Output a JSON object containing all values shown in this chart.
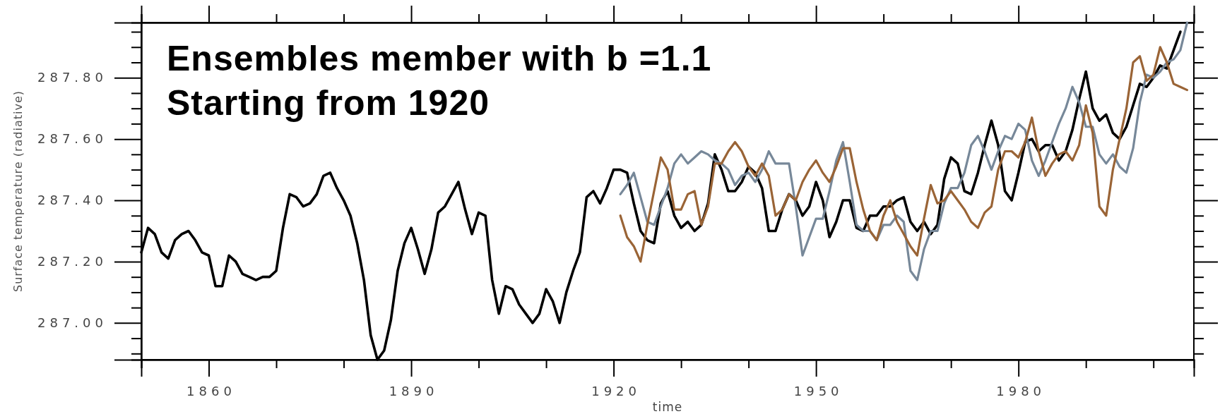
{
  "chart_data": {
    "type": "line",
    "xlabel": "time",
    "ylabel": "Surface temperature (radiative)",
    "annotations": [
      "Ensembles member with b =1.1",
      "Starting from 1920"
    ],
    "xlim": [
      1850,
      2006
    ],
    "ylim": [
      286.88,
      287.98
    ],
    "xticks": [
      {
        "value": 1850,
        "label": null
      },
      1860,
      {
        "value": 1870,
        "label": null
      },
      {
        "value": 1880,
        "label": null
      },
      1890,
      {
        "value": 1900,
        "label": null
      },
      {
        "value": 1910,
        "label": null
      },
      1920,
      {
        "value": 1930,
        "label": null
      },
      {
        "value": 1940,
        "label": null
      },
      1950,
      {
        "value": 1960,
        "label": null
      },
      {
        "value": 1970,
        "label": null
      },
      1980,
      {
        "value": 1990,
        "label": null
      },
      {
        "value": 2000,
        "label": null
      }
    ],
    "yticks": [
      {
        "value": 286.9,
        "label": null
      },
      {
        "value": 286.95,
        "label": null
      },
      {
        "value": 287,
        "label": "287.00"
      },
      {
        "value": 287.05,
        "label": null
      },
      {
        "value": 287.1,
        "label": null
      },
      {
        "value": 287.15,
        "label": null
      },
      {
        "value": 287.2,
        "label": "287.20"
      },
      {
        "value": 287.25,
        "label": null
      },
      {
        "value": 287.3,
        "label": null
      },
      {
        "value": 287.35,
        "label": null
      },
      {
        "value": 287.4,
        "label": "287.40"
      },
      {
        "value": 287.45,
        "label": null
      },
      {
        "value": 287.5,
        "label": null
      },
      {
        "value": 287.55,
        "label": null
      },
      {
        "value": 287.6,
        "label": "287.60"
      },
      {
        "value": 287.65,
        "label": null
      },
      {
        "value": 287.7,
        "label": null
      },
      {
        "value": 287.75,
        "label": null
      },
      {
        "value": 287.8,
        "label": "287.80"
      },
      {
        "value": 287.85,
        "label": null
      },
      {
        "value": 287.9,
        "label": null
      },
      {
        "value": 287.95,
        "label": null
      }
    ],
    "series": [
      {
        "color": "#000000",
        "x": [
          1850,
          1851,
          1852,
          1853,
          1854,
          1855,
          1856,
          1857,
          1858,
          1859,
          1860,
          1861,
          1862,
          1863,
          1864,
          1865,
          1866,
          1867,
          1868,
          1869,
          1870,
          1871,
          1872,
          1873,
          1874,
          1875,
          1876,
          1877,
          1878,
          1879,
          1880,
          1881,
          1882,
          1883,
          1884,
          1885,
          1886,
          1887,
          1888,
          1889,
          1890,
          1891,
          1892,
          1893,
          1894,
          1895,
          1896,
          1897,
          1898,
          1899,
          1900,
          1901,
          1902,
          1903,
          1904,
          1905,
          1906,
          1907,
          1908,
          1909,
          1910,
          1911,
          1912,
          1913,
          1914,
          1915,
          1916,
          1917,
          1918,
          1919,
          1920,
          1921,
          1922,
          1923,
          1924,
          1925,
          1926,
          1927,
          1928,
          1929,
          1930,
          1931,
          1932,
          1933,
          1934,
          1935,
          1936,
          1937,
          1938,
          1939,
          1940,
          1941,
          1942,
          1943,
          1944,
          1945,
          1946,
          1947,
          1948,
          1949,
          1950,
          1951,
          1952,
          1953,
          1954,
          1955,
          1956,
          1957,
          1958,
          1959,
          1960,
          1961,
          1962,
          1963,
          1964,
          1965,
          1966,
          1967,
          1968,
          1969,
          1970,
          1971,
          1972,
          1973,
          1974,
          1975,
          1976,
          1977,
          1978,
          1979,
          1980,
          1981,
          1982,
          1983,
          1984,
          1985,
          1986,
          1987,
          1988,
          1989,
          1990,
          1991,
          1992,
          1993,
          1994,
          1995,
          1996,
          1997,
          1998,
          1999,
          2000,
          2001,
          2002,
          2003,
          2004
        ],
        "values": [
          287.23,
          287.31,
          287.29,
          287.23,
          287.21,
          287.27,
          287.29,
          287.3,
          287.27,
          287.23,
          287.22,
          287.12,
          287.12,
          287.22,
          287.2,
          287.16,
          287.15,
          287.14,
          287.15,
          287.15,
          287.17,
          287.31,
          287.42,
          287.41,
          287.38,
          287.39,
          287.42,
          287.48,
          287.49,
          287.44,
          287.4,
          287.35,
          287.26,
          287.14,
          286.96,
          286.88,
          286.91,
          287.01,
          287.17,
          287.26,
          287.31,
          287.24,
          287.16,
          287.24,
          287.36,
          287.38,
          287.42,
          287.46,
          287.37,
          287.29,
          287.36,
          287.35,
          287.14,
          287.03,
          287.12,
          287.11,
          287.06,
          287.03,
          287.0,
          287.03,
          287.11,
          287.07,
          287.0,
          287.1,
          287.17,
          287.23,
          287.41,
          287.43,
          287.39,
          287.44,
          287.5,
          287.5,
          287.49,
          287.39,
          287.3,
          287.27,
          287.26,
          287.39,
          287.43,
          287.35,
          287.31,
          287.33,
          287.3,
          287.32,
          287.39,
          287.55,
          287.5,
          287.43,
          287.43,
          287.46,
          287.51,
          287.49,
          287.44,
          287.3,
          287.3,
          287.37,
          287.42,
          287.4,
          287.35,
          287.38,
          287.46,
          287.4,
          287.28,
          287.33,
          287.4,
          287.4,
          287.31,
          287.3,
          287.35,
          287.35,
          287.38,
          287.38,
          287.4,
          287.41,
          287.33,
          287.3,
          287.33,
          287.29,
          287.32,
          287.47,
          287.54,
          287.52,
          287.43,
          287.42,
          287.49,
          287.58,
          287.66,
          287.58,
          287.43,
          287.4,
          287.49,
          287.59,
          287.6,
          287.56,
          287.58,
          287.58,
          287.53,
          287.56,
          287.63,
          287.73,
          287.82,
          287.7,
          287.66,
          287.68,
          287.62,
          287.6,
          287.64,
          287.71,
          287.78,
          287.77,
          287.8,
          287.84,
          287.83,
          287.89,
          287.95
        ]
      },
      {
        "color": "#778899",
        "x": [
          1921,
          1922,
          1923,
          1924,
          1925,
          1926,
          1927,
          1928,
          1929,
          1930,
          1931,
          1932,
          1933,
          1934,
          1935,
          1936,
          1937,
          1938,
          1939,
          1940,
          1941,
          1942,
          1943,
          1944,
          1945,
          1946,
          1947,
          1948,
          1949,
          1950,
          1951,
          1952,
          1953,
          1954,
          1955,
          1956,
          1957,
          1958,
          1959,
          1960,
          1961,
          1962,
          1963,
          1964,
          1965,
          1966,
          1967,
          1968,
          1969,
          1970,
          1971,
          1972,
          1973,
          1974,
          1975,
          1976,
          1977,
          1978,
          1979,
          1980,
          1981,
          1982,
          1983,
          1984,
          1985,
          1986,
          1987,
          1988,
          1989,
          1990,
          1991,
          1992,
          1993,
          1994,
          1995,
          1996,
          1997,
          1998,
          1999,
          2000,
          2001,
          2002,
          2003,
          2004,
          2005
        ],
        "values": [
          287.42,
          287.45,
          287.49,
          287.41,
          287.33,
          287.32,
          287.38,
          287.44,
          287.52,
          287.55,
          287.52,
          287.54,
          287.56,
          287.55,
          287.53,
          287.52,
          287.5,
          287.45,
          287.48,
          287.49,
          287.46,
          287.5,
          287.56,
          287.52,
          287.52,
          287.52,
          287.38,
          287.22,
          287.28,
          287.34,
          287.34,
          287.43,
          287.53,
          287.59,
          287.46,
          287.32,
          287.3,
          287.3,
          287.27,
          287.32,
          287.32,
          287.35,
          287.33,
          287.17,
          287.14,
          287.24,
          287.3,
          287.3,
          287.39,
          287.44,
          287.44,
          287.49,
          287.58,
          287.61,
          287.56,
          287.5,
          287.56,
          287.61,
          287.6,
          287.65,
          287.63,
          287.53,
          287.48,
          287.53,
          287.59,
          287.65,
          287.7,
          287.77,
          287.72,
          287.64,
          287.64,
          287.55,
          287.52,
          287.55,
          287.51,
          287.49,
          287.57,
          287.72,
          287.81,
          287.8,
          287.82,
          287.85,
          287.86,
          287.89,
          287.98
        ]
      },
      {
        "color": "#9a6436",
        "x": [
          1921,
          1922,
          1923,
          1924,
          1925,
          1926,
          1927,
          1928,
          1929,
          1930,
          1931,
          1932,
          1933,
          1934,
          1935,
          1936,
          1937,
          1938,
          1939,
          1940,
          1941,
          1942,
          1943,
          1944,
          1945,
          1946,
          1947,
          1948,
          1949,
          1950,
          1951,
          1952,
          1953,
          1954,
          1955,
          1956,
          1957,
          1958,
          1959,
          1960,
          1961,
          1962,
          1963,
          1964,
          1965,
          1966,
          1967,
          1968,
          1969,
          1970,
          1971,
          1972,
          1973,
          1974,
          1975,
          1976,
          1977,
          1978,
          1979,
          1980,
          1981,
          1982,
          1983,
          1984,
          1985,
          1986,
          1987,
          1988,
          1989,
          1990,
          1991,
          1992,
          1993,
          1994,
          1995,
          1996,
          1997,
          1998,
          1999,
          2000,
          2001,
          2002,
          2003,
          2004,
          2005
        ],
        "values": [
          287.35,
          287.28,
          287.25,
          287.2,
          287.32,
          287.43,
          287.54,
          287.5,
          287.37,
          287.37,
          287.42,
          287.43,
          287.32,
          287.38,
          287.52,
          287.52,
          287.56,
          287.59,
          287.56,
          287.51,
          287.48,
          287.52,
          287.48,
          287.35,
          287.37,
          287.42,
          287.4,
          287.46,
          287.5,
          287.53,
          287.49,
          287.46,
          287.51,
          287.57,
          287.57,
          287.46,
          287.37,
          287.3,
          287.27,
          287.35,
          287.4,
          287.33,
          287.29,
          287.25,
          287.22,
          287.34,
          287.45,
          287.39,
          287.4,
          287.43,
          287.4,
          287.37,
          287.33,
          287.31,
          287.36,
          287.38,
          287.5,
          287.56,
          287.56,
          287.54,
          287.59,
          287.67,
          287.56,
          287.48,
          287.52,
          287.55,
          287.56,
          287.53,
          287.58,
          287.71,
          287.62,
          287.38,
          287.35,
          287.5,
          287.6,
          287.7,
          287.85,
          287.87,
          287.79,
          287.81,
          287.9,
          287.85,
          287.78,
          287.77,
          287.76
        ]
      }
    ]
  }
}
